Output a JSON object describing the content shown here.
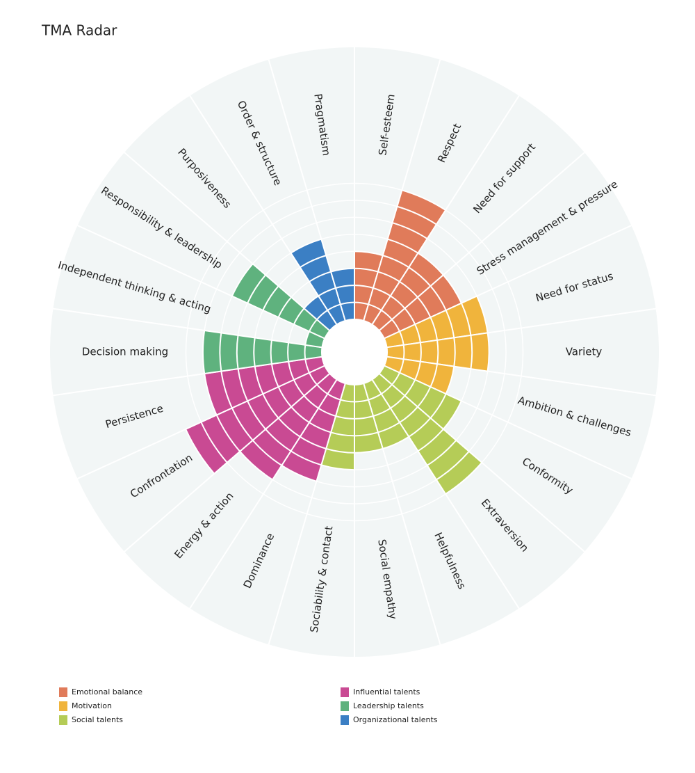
{
  "chart_data": {
    "type": "polar-bar",
    "title": "TMA Radar",
    "categories": [
      "Self-esteem",
      "Respect",
      "Need for support",
      "Stress management & pressure",
      "Need for status",
      "Variety",
      "Ambition & challenges",
      "Conformity",
      "Extraversion",
      "Helpfulness",
      "Social empathy",
      "Sociability & contact",
      "Dominance",
      "Energy & action",
      "Confrontation",
      "Persistence",
      "Decision making",
      "Independent thinking & acting",
      "Responsibility & leadership",
      "Purposiveness",
      "Order & structure",
      "Pragmatism"
    ],
    "ylim": [
      0,
      16
    ],
    "series": [
      {
        "name": "Emotional balance",
        "color": "#e07b5a",
        "values": [
          4,
          8,
          5,
          5,
          null,
          null,
          null,
          null,
          null,
          null,
          null,
          null,
          null,
          null,
          null,
          null,
          null,
          null,
          null,
          null,
          null,
          null
        ]
      },
      {
        "name": "Motivation",
        "color": "#f0b43c",
        "values": [
          null,
          null,
          null,
          null,
          6,
          6,
          4,
          null,
          null,
          null,
          null,
          null,
          null,
          null,
          null,
          null,
          null,
          null,
          null,
          null,
          null,
          null
        ]
      },
      {
        "name": "Social talents",
        "color": "#b5cc57",
        "values": [
          null,
          null,
          null,
          null,
          null,
          null,
          null,
          5,
          8,
          4,
          4,
          5,
          null,
          null,
          null,
          null,
          null,
          null,
          null,
          null,
          null,
          null
        ]
      },
      {
        "name": "Influential talents",
        "color": "#c94a93",
        "values": [
          null,
          null,
          null,
          null,
          null,
          null,
          null,
          null,
          null,
          null,
          null,
          null,
          6,
          7,
          9,
          7,
          null,
          null,
          null,
          null,
          null,
          null
        ]
      },
      {
        "name": "Leadership talents",
        "color": "#5fb27e",
        "values": [
          null,
          null,
          null,
          null,
          null,
          null,
          null,
          null,
          null,
          null,
          null,
          null,
          null,
          null,
          null,
          null,
          7,
          1,
          6,
          null,
          null,
          null
        ]
      },
      {
        "name": "Organizational talents",
        "color": "#3b7fc4",
        "values": [
          null,
          null,
          null,
          null,
          null,
          null,
          null,
          null,
          null,
          null,
          null,
          null,
          null,
          null,
          null,
          null,
          null,
          null,
          null,
          2,
          5,
          3
        ]
      }
    ]
  }
}
